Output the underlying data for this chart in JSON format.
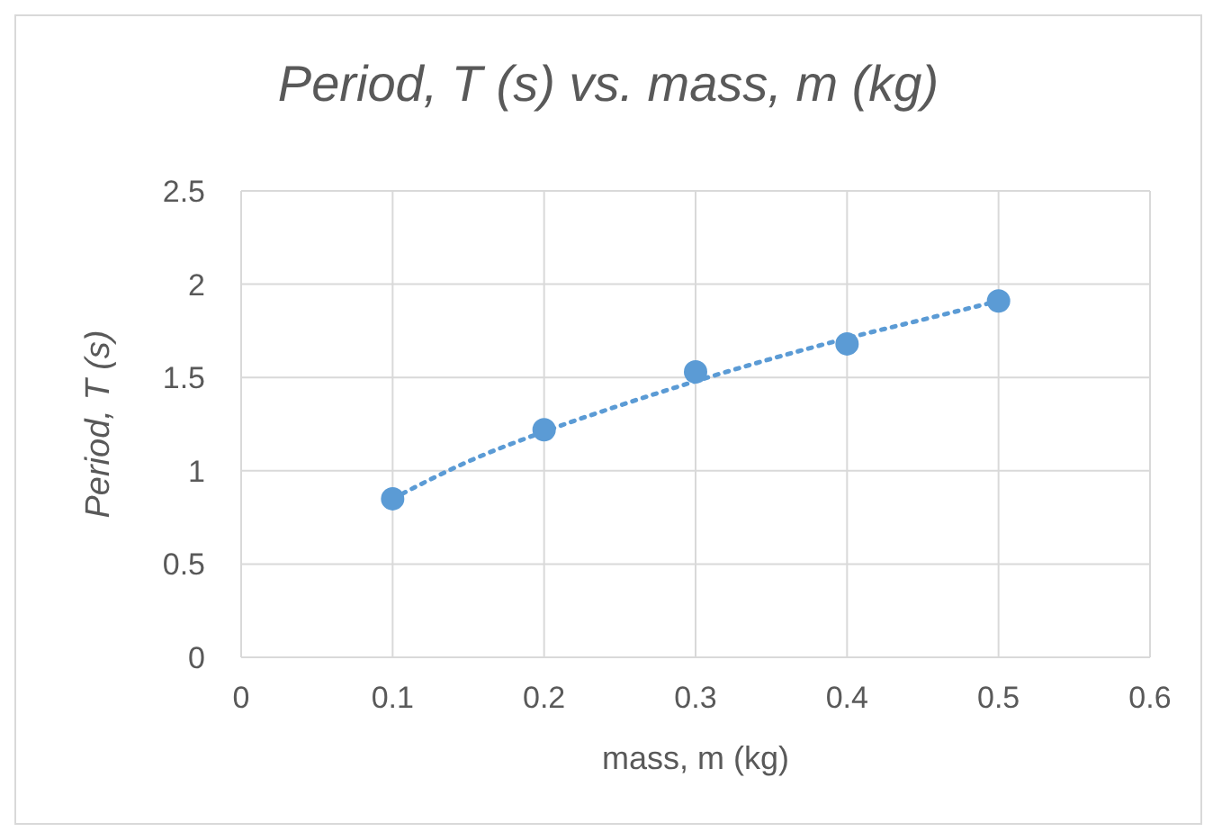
{
  "chart_data": {
    "type": "scatter",
    "title": "Period, T (s) vs. mass, m (kg)",
    "xlabel": "mass, m (kg)",
    "ylabel": "Period, T (s)",
    "xlim": [
      0,
      0.6
    ],
    "xticks": [
      0,
      0.1,
      0.2,
      0.3,
      0.4,
      0.5,
      0.6
    ],
    "ylim": [
      0,
      2.5
    ],
    "yticks": [
      0,
      0.5,
      1,
      1.5,
      2,
      2.5
    ],
    "grid": true,
    "legend": false,
    "series": [
      {
        "color": "#5b9bd5",
        "marker": "circle",
        "x": [
          0.1,
          0.2,
          0.3,
          0.4,
          0.5
        ],
        "values": [
          0.85,
          1.22,
          1.53,
          1.68,
          1.91
        ]
      },
      {
        "type": "line",
        "color": "#5b9bd5",
        "line_style": "dotted",
        "marker": "none",
        "x": [
          0.1,
          0.15,
          0.2,
          0.25,
          0.3,
          0.35,
          0.4,
          0.45,
          0.5
        ],
        "values": [
          0.85,
          1.05,
          1.21,
          1.35,
          1.48,
          1.6,
          1.71,
          1.81,
          1.91
        ]
      }
    ]
  }
}
